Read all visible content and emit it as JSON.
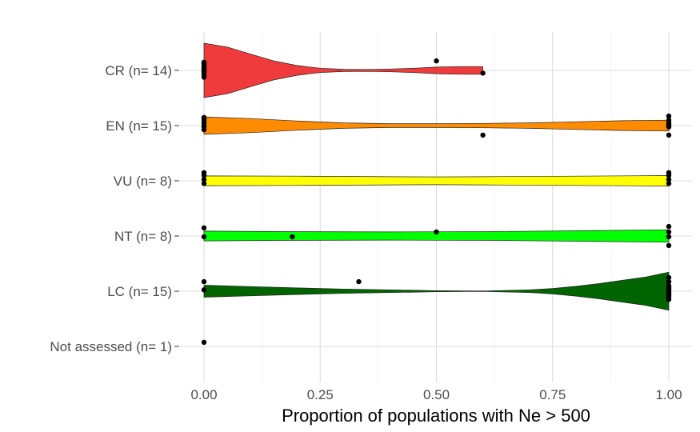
{
  "chart_data": {
    "type": "violin",
    "orientation": "horizontal",
    "xlabel": "Proportion of populations with Ne > 500",
    "ylabel": "",
    "xlim": [
      0,
      1
    ],
    "x_ticks": [
      "0.00",
      "0.25",
      "0.50",
      "0.75",
      "1.00"
    ],
    "grid": true,
    "legend": "none",
    "categories": [
      "CR (n= 14)",
      "EN (n= 15)",
      "VU (n= 8)",
      "NT (n= 8)",
      "LC (n= 15)",
      "Not assessed (n= 1)"
    ],
    "series": [
      {
        "category": "CR (n= 14)",
        "color": "#ef3b3b",
        "violin": {
          "range": [
            0,
            0.6
          ],
          "profile": [
            [
              0,
              1.0
            ],
            [
              0.05,
              0.86
            ],
            [
              0.1,
              0.6
            ],
            [
              0.15,
              0.35
            ],
            [
              0.2,
              0.18
            ],
            [
              0.25,
              0.08
            ],
            [
              0.3,
              0.04
            ],
            [
              0.35,
              0.035
            ],
            [
              0.4,
              0.05
            ],
            [
              0.45,
              0.08
            ],
            [
              0.5,
              0.12
            ],
            [
              0.55,
              0.14
            ],
            [
              0.6,
              0.14
            ]
          ]
        },
        "points": [
          [
            0,
            0.3
          ],
          [
            0,
            0.2
          ],
          [
            0,
            0.1
          ],
          [
            0,
            0.05
          ],
          [
            0,
            0
          ],
          [
            0,
            -0.05
          ],
          [
            0,
            -0.15
          ],
          [
            0,
            0.25
          ],
          [
            0,
            -0.25
          ],
          [
            0,
            0.15
          ],
          [
            0,
            -0.1
          ],
          [
            0,
            0.0
          ],
          [
            0.5,
            0.35
          ],
          [
            0.6,
            -0.1
          ]
        ]
      },
      {
        "category": "EN (n= 15)",
        "color": "#ff8c00",
        "violin": {
          "range": [
            0,
            1
          ],
          "profile": [
            [
              0,
              0.32
            ],
            [
              0.1,
              0.26
            ],
            [
              0.2,
              0.17
            ],
            [
              0.3,
              0.1
            ],
            [
              0.4,
              0.07
            ],
            [
              0.5,
              0.07
            ],
            [
              0.6,
              0.08
            ],
            [
              0.7,
              0.1
            ],
            [
              0.8,
              0.14
            ],
            [
              0.9,
              0.18
            ],
            [
              1.0,
              0.2
            ]
          ]
        },
        "points": [
          [
            0,
            0.3
          ],
          [
            0,
            0.2
          ],
          [
            0,
            0.1
          ],
          [
            0,
            0
          ],
          [
            0,
            -0.15
          ],
          [
            0,
            0.25
          ],
          [
            0,
            -0.05
          ],
          [
            0.6,
            -0.35
          ],
          [
            1,
            0.35
          ],
          [
            1,
            0.1
          ],
          [
            1,
            0
          ],
          [
            1,
            -0.35
          ],
          [
            1,
            0.05
          ],
          [
            1,
            -0.05
          ],
          [
            1,
            0.2
          ]
        ]
      },
      {
        "category": "VU (n= 8)",
        "color": "#ffff00",
        "violin": {
          "range": [
            0,
            1
          ],
          "profile": [
            [
              0,
              0.18
            ],
            [
              0.2,
              0.17
            ],
            [
              0.4,
              0.15
            ],
            [
              0.5,
              0.145
            ],
            [
              0.6,
              0.15
            ],
            [
              0.8,
              0.17
            ],
            [
              1.0,
              0.19
            ]
          ]
        },
        "points": [
          [
            0,
            0.3
          ],
          [
            0,
            0.2
          ],
          [
            0,
            -0.1
          ],
          [
            0,
            0.05
          ],
          [
            1,
            0.3
          ],
          [
            1,
            0.2
          ],
          [
            1,
            0.05
          ],
          [
            1,
            -0.1
          ]
        ]
      },
      {
        "category": "NT (n= 8)",
        "color": "#00ff00",
        "violin": {
          "range": [
            0,
            1
          ],
          "profile": [
            [
              0,
              0.18
            ],
            [
              0.2,
              0.16
            ],
            [
              0.4,
              0.15
            ],
            [
              0.5,
              0.155
            ],
            [
              0.6,
              0.16
            ],
            [
              0.8,
              0.19
            ],
            [
              1.0,
              0.23
            ]
          ]
        },
        "points": [
          [
            0,
            0.3
          ],
          [
            0,
            -0.03
          ],
          [
            0.19,
            -0.03
          ],
          [
            0.5,
            0.15
          ],
          [
            1,
            0.35
          ],
          [
            1,
            0.15
          ],
          [
            1,
            -0.03
          ],
          [
            1,
            -0.35
          ]
        ]
      },
      {
        "category": "LC (n= 15)",
        "color": "#006400",
        "violin": {
          "range": [
            0,
            1
          ],
          "profile": [
            [
              0,
              0.22
            ],
            [
              0.1,
              0.17
            ],
            [
              0.2,
              0.12
            ],
            [
              0.3,
              0.08
            ],
            [
              0.4,
              0.05
            ],
            [
              0.5,
              0.02
            ],
            [
              0.6,
              0.01
            ],
            [
              0.7,
              0.05
            ],
            [
              0.75,
              0.1
            ],
            [
              0.8,
              0.18
            ],
            [
              0.85,
              0.28
            ],
            [
              0.9,
              0.4
            ],
            [
              0.95,
              0.52
            ],
            [
              1.0,
              0.7
            ]
          ]
        },
        "points": [
          [
            0,
            0.35
          ],
          [
            0,
            0.05
          ],
          [
            0.333,
            0.35
          ],
          [
            1,
            0.5
          ],
          [
            1,
            0.35
          ],
          [
            1,
            0.2
          ],
          [
            1,
            0.1
          ],
          [
            1,
            0
          ],
          [
            1,
            -0.1
          ],
          [
            1,
            -0.2
          ],
          [
            1,
            -0.3
          ],
          [
            1,
            0.15
          ],
          [
            1,
            -0.15
          ],
          [
            1,
            0.05
          ],
          [
            1,
            -0.05
          ]
        ]
      },
      {
        "category": "Not assessed (n= 1)",
        "color": "#000000",
        "violin": null,
        "points": [
          [
            0,
            0.15
          ]
        ]
      }
    ]
  }
}
